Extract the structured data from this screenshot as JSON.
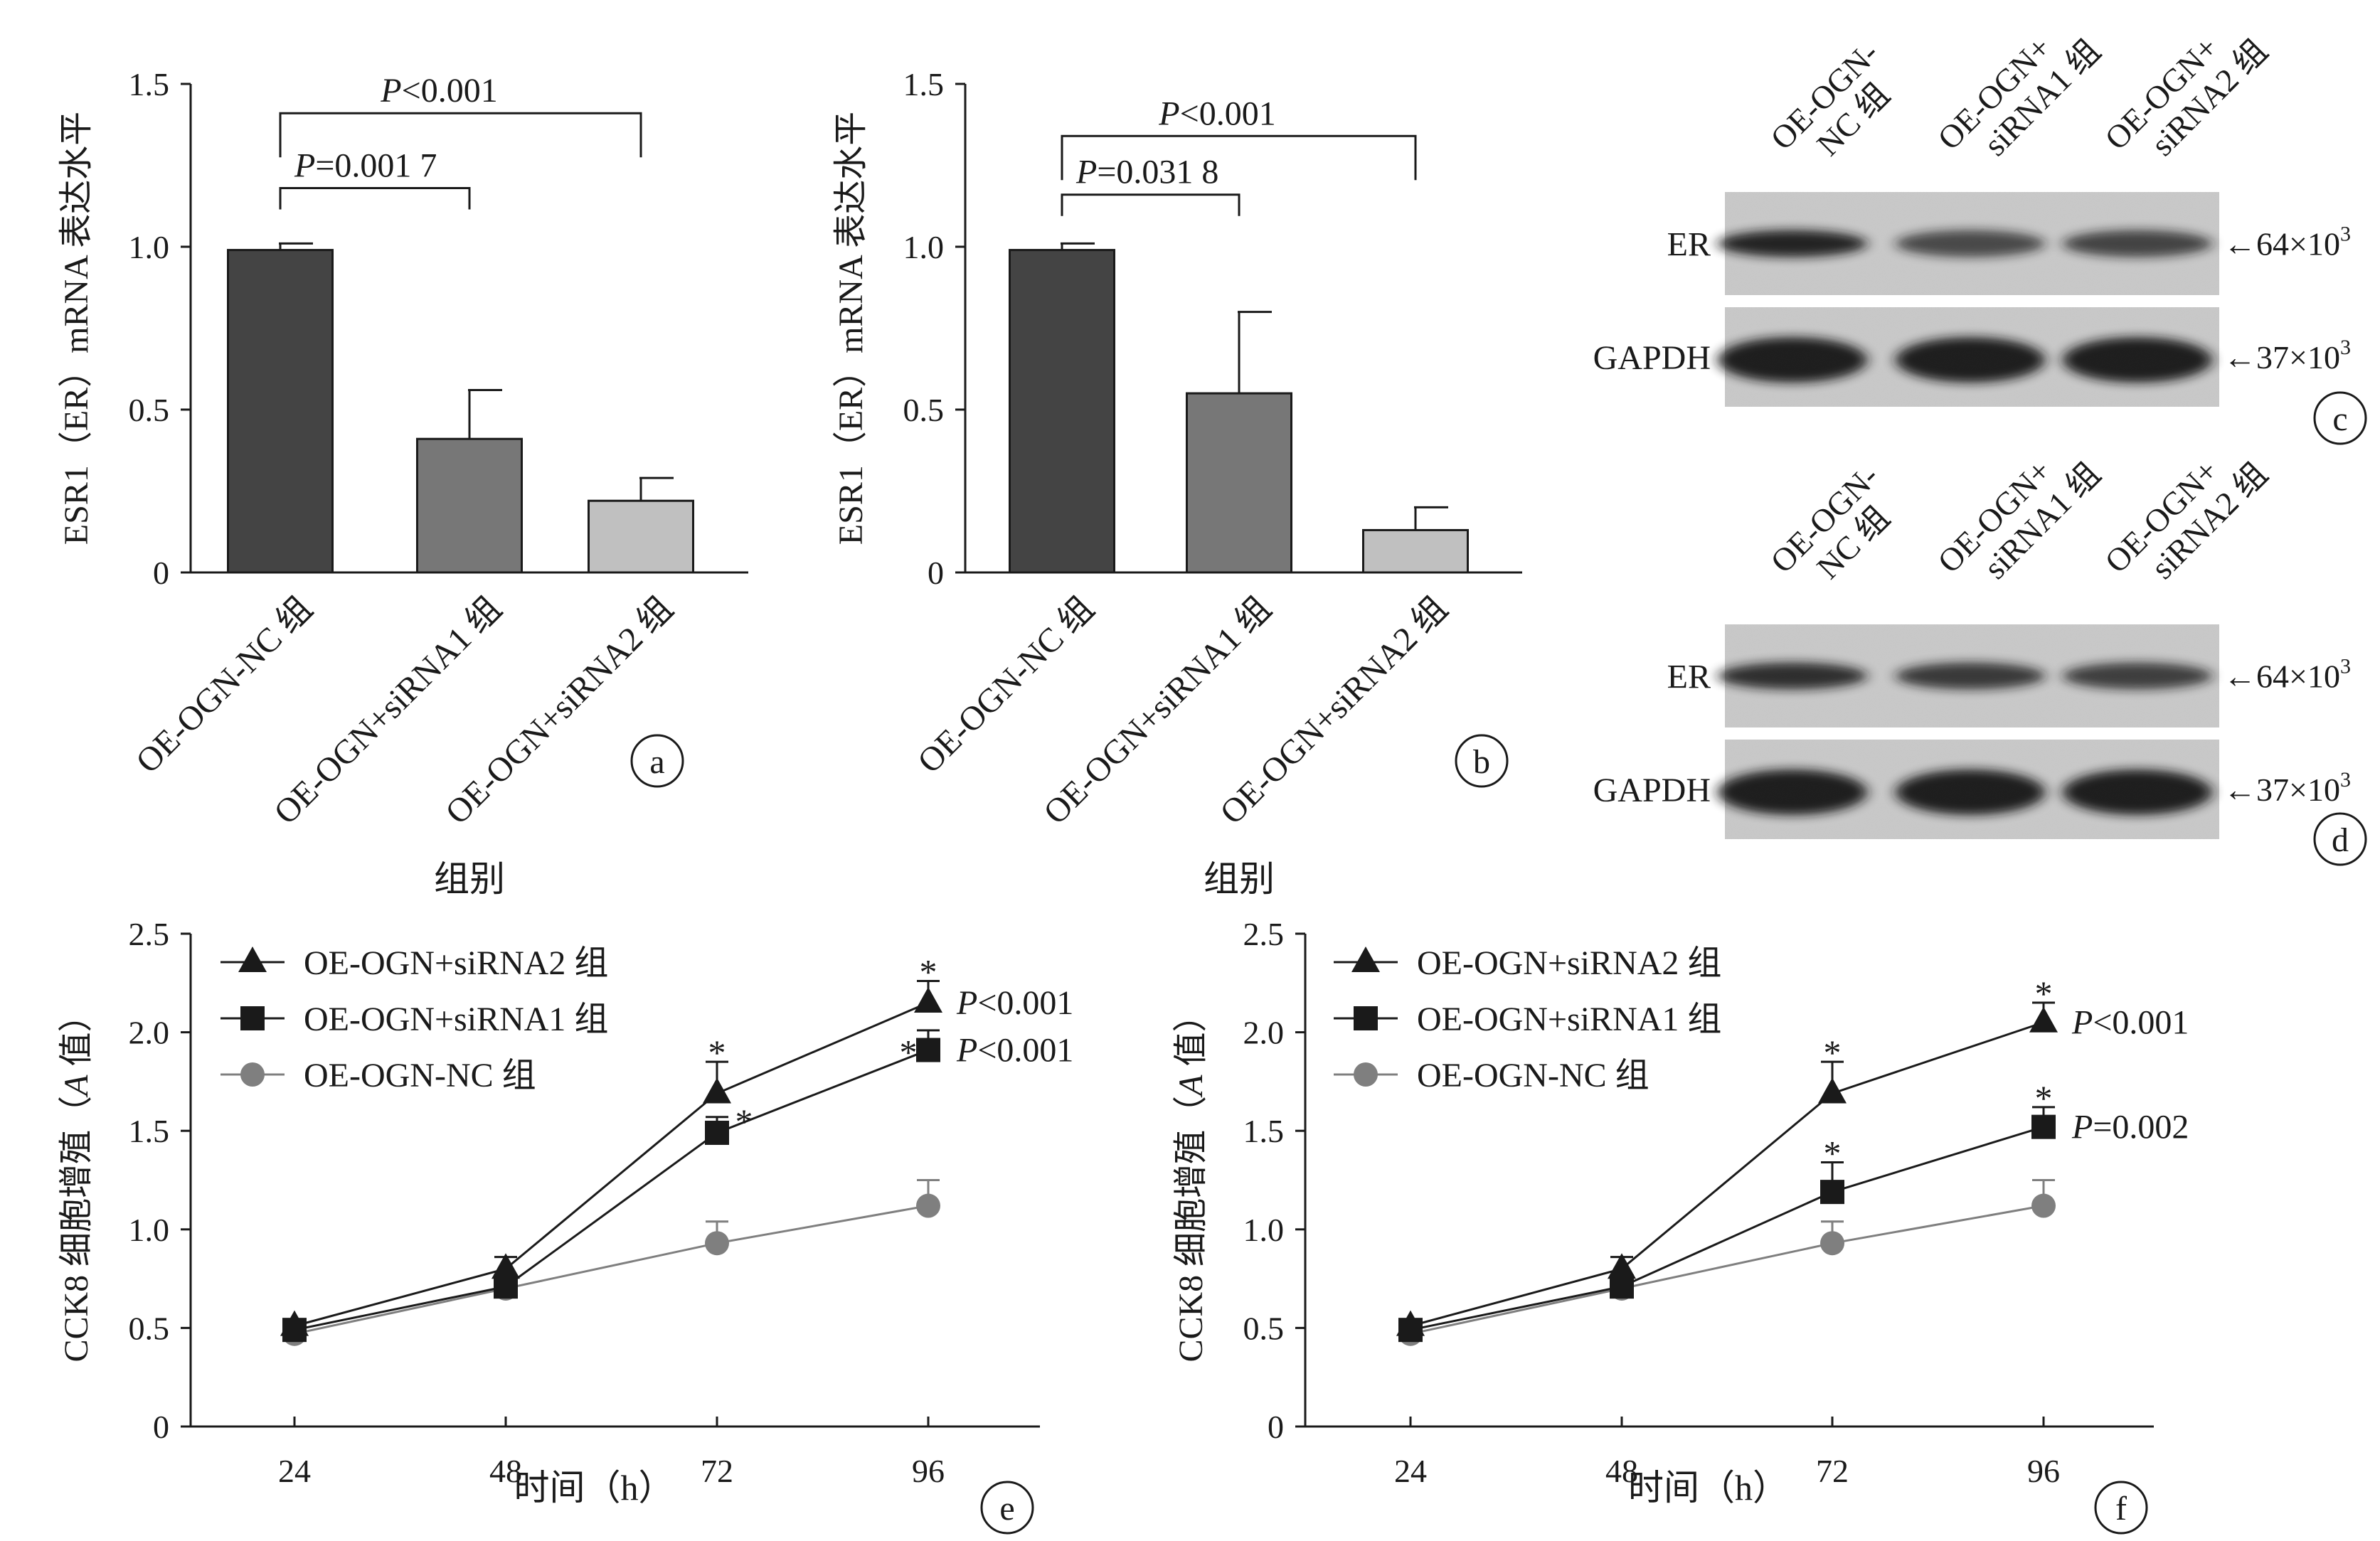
{
  "panels": {
    "a": "a",
    "b": "b",
    "c": "c",
    "d": "d",
    "e": "e",
    "f": "f"
  },
  "blots": {
    "lane_labels": [
      [
        "OE-OGN-",
        "NC 组"
      ],
      [
        "OE-OGN+",
        "siRNA1 组"
      ],
      [
        "OE-OGN+",
        "siRNA2 组"
      ]
    ],
    "rows": [
      {
        "label": "ER",
        "marker": "←64×10",
        "exp": "3"
      },
      {
        "label": "GAPDH",
        "marker": "←37×10",
        "exp": "3"
      }
    ]
  },
  "chart_data": [
    {
      "id": "a",
      "type": "bar",
      "ylabel": "ESR1（ER）mRNA 表达水平",
      "xlabel": "组别",
      "ylim": [
        0,
        1.5
      ],
      "yticks": [
        0,
        0.5,
        1.0,
        1.5
      ],
      "ytick_labels": [
        "0",
        "0.5",
        "1.0",
        "1.5"
      ],
      "categories": [
        "OE-OGN-NC 组",
        "OE-OGN+siRNA1 组",
        "OE-OGN+siRNA2 组"
      ],
      "values": [
        0.99,
        0.41,
        0.22
      ],
      "errors": [
        0.02,
        0.15,
        0.07
      ],
      "colors": [
        "#444444",
        "#777777",
        "#c0c0c0"
      ],
      "brackets": [
        {
          "from": 0,
          "to": 1,
          "italic": "P",
          "text": "=0.001 7",
          "y": 1.18
        },
        {
          "from": 0,
          "to": 2,
          "italic": "P",
          "text": "<0.001",
          "y": 1.41
        }
      ]
    },
    {
      "id": "b",
      "type": "bar",
      "ylabel": "ESR1（ER）mRNA 表达水平",
      "xlabel": "组别",
      "ylim": [
        0,
        1.5
      ],
      "yticks": [
        0,
        0.5,
        1.0,
        1.5
      ],
      "ytick_labels": [
        "0",
        "0.5",
        "1.0",
        "1.5"
      ],
      "categories": [
        "OE-OGN-NC 组",
        "OE-OGN+siRNA1 组",
        "OE-OGN+siRNA2 组"
      ],
      "values": [
        0.99,
        0.55,
        0.13
      ],
      "errors": [
        0.02,
        0.25,
        0.07
      ],
      "colors": [
        "#444444",
        "#777777",
        "#c0c0c0"
      ],
      "brackets": [
        {
          "from": 0,
          "to": 1,
          "italic": "P",
          "text": "=0.031 8",
          "y": 1.16
        },
        {
          "from": 0,
          "to": 2,
          "italic": "P",
          "text": "<0.001",
          "y": 1.34
        }
      ]
    },
    {
      "id": "e",
      "type": "line",
      "ylabel_pre": "CCK8 细胞增殖（",
      "ylabel_italic": "A",
      "ylabel_post": " 值）",
      "xlabel": "时间（h）",
      "x": [
        24,
        48,
        72,
        96
      ],
      "xtick_labels": [
        "24",
        "48",
        "72",
        "96"
      ],
      "ylim": [
        0,
        2.5
      ],
      "yticks": [
        0,
        0.5,
        1.0,
        1.5,
        2.0,
        2.5
      ],
      "ytick_labels": [
        "0",
        "0.5",
        "1.0",
        "1.5",
        "2.0",
        "2.5"
      ],
      "series": [
        {
          "name": "OE-OGN+siRNA2 组",
          "marker": "triangle",
          "color": "#1a1a1a",
          "values": [
            0.51,
            0.8,
            1.69,
            2.15
          ],
          "errors": [
            0.02,
            0.06,
            0.16,
            0.11
          ],
          "stars": [
            false,
            false,
            true,
            true
          ],
          "pval_italic": "P",
          "pval": "<0.001"
        },
        {
          "name": "OE-OGN+siRNA1 组",
          "marker": "square",
          "color": "#1a1a1a",
          "values": [
            0.49,
            0.71,
            1.49,
            1.91
          ],
          "errors": [
            0.02,
            0.03,
            0.08,
            0.1
          ],
          "stars": [
            false,
            false,
            true,
            true
          ],
          "pval_italic": "P",
          "pval": "<0.001"
        },
        {
          "name": "OE-OGN-NC 组",
          "marker": "circle",
          "color": "#7f7f7f",
          "values": [
            0.47,
            0.7,
            0.93,
            1.12
          ],
          "errors": [
            0.02,
            0.03,
            0.11,
            0.13
          ],
          "stars": [
            false,
            false,
            false,
            false
          ]
        }
      ]
    },
    {
      "id": "f",
      "type": "line",
      "ylabel_pre": "CCK8 细胞增殖（",
      "ylabel_italic": "A",
      "ylabel_post": " 值）",
      "xlabel": "时间（h）",
      "x": [
        24,
        48,
        72,
        96
      ],
      "xtick_labels": [
        "24",
        "48",
        "72",
        "96"
      ],
      "ylim": [
        0,
        2.5
      ],
      "yticks": [
        0,
        0.5,
        1.0,
        1.5,
        2.0,
        2.5
      ],
      "ytick_labels": [
        "0",
        "0.5",
        "1.0",
        "1.5",
        "2.0",
        "2.5"
      ],
      "series": [
        {
          "name": "OE-OGN+siRNA2 组",
          "marker": "triangle",
          "color": "#1a1a1a",
          "values": [
            0.51,
            0.8,
            1.69,
            2.05
          ],
          "errors": [
            0.02,
            0.06,
            0.16,
            0.1
          ],
          "stars": [
            false,
            false,
            true,
            true
          ],
          "pval_italic": "P",
          "pval": "<0.001"
        },
        {
          "name": "OE-OGN+siRNA1 组",
          "marker": "square",
          "color": "#1a1a1a",
          "values": [
            0.49,
            0.71,
            1.19,
            1.52
          ],
          "errors": [
            0.02,
            0.03,
            0.15,
            0.1
          ],
          "stars": [
            false,
            false,
            true,
            true
          ],
          "pval_italic": "P",
          "pval": "=0.002"
        },
        {
          "name": "OE-OGN-NC 组",
          "marker": "circle",
          "color": "#7f7f7f",
          "values": [
            0.47,
            0.7,
            0.93,
            1.12
          ],
          "errors": [
            0.02,
            0.03,
            0.11,
            0.13
          ],
          "stars": [
            false,
            false,
            false,
            false
          ]
        }
      ]
    }
  ]
}
